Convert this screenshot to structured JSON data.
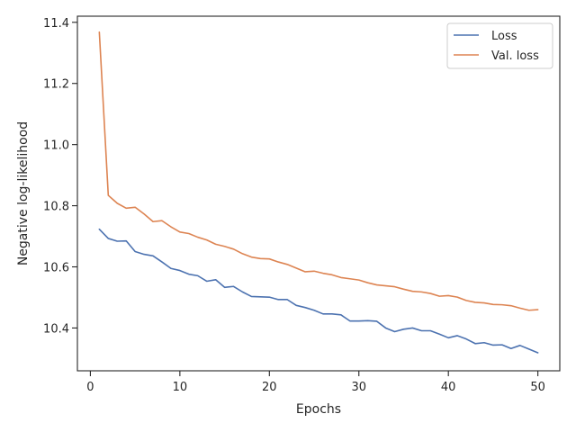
{
  "chart_data": {
    "type": "line",
    "xlabel": "Epochs",
    "ylabel": "Negative log-likelihood",
    "xlim": [
      -1.45,
      52.45
    ],
    "ylim": [
      10.26,
      11.42
    ],
    "xticks": [
      0,
      10,
      20,
      30,
      40,
      50
    ],
    "xtick_labels": [
      "0",
      "10",
      "20",
      "30",
      "40",
      "50"
    ],
    "yticks": [
      10.4,
      10.6,
      10.8,
      11.0,
      11.2,
      11.4
    ],
    "ytick_labels": [
      "10.4",
      "10.6",
      "10.8",
      "11.0",
      "11.2",
      "11.4"
    ],
    "grid": false,
    "legend_position": "top-right",
    "x": [
      1,
      2,
      3,
      4,
      5,
      6,
      7,
      8,
      9,
      10,
      11,
      12,
      13,
      14,
      15,
      16,
      17,
      18,
      19,
      20,
      21,
      22,
      23,
      24,
      25,
      26,
      27,
      28,
      29,
      30,
      31,
      32,
      33,
      34,
      35,
      36,
      37,
      38,
      39,
      40,
      41,
      42,
      43,
      44,
      45,
      46,
      47,
      48,
      49,
      50
    ],
    "series": [
      {
        "name": "Loss",
        "color": "#4c72b0",
        "values": [
          10.723,
          10.693,
          10.684,
          10.685,
          10.65,
          10.641,
          10.636,
          10.616,
          10.595,
          10.588,
          10.576,
          10.571,
          10.553,
          10.558,
          10.533,
          10.536,
          10.518,
          10.503,
          10.502,
          10.501,
          10.493,
          10.493,
          10.474,
          10.467,
          10.458,
          10.446,
          10.446,
          10.443,
          10.423,
          10.423,
          10.424,
          10.422,
          10.4,
          10.388,
          10.396,
          10.4,
          10.391,
          10.391,
          10.38,
          10.368,
          10.375,
          10.364,
          10.349,
          10.352,
          10.344,
          10.345,
          10.333,
          10.343,
          10.331,
          10.319
        ]
      },
      {
        "name": "Val. loss",
        "color": "#dd8452",
        "values": [
          11.368,
          10.834,
          10.808,
          10.792,
          10.795,
          10.773,
          10.748,
          10.751,
          10.731,
          10.714,
          10.709,
          10.697,
          10.688,
          10.674,
          10.667,
          10.658,
          10.643,
          10.632,
          10.627,
          10.626,
          10.616,
          10.608,
          10.596,
          10.584,
          10.586,
          10.579,
          10.574,
          10.565,
          10.561,
          10.557,
          10.548,
          10.541,
          10.538,
          10.535,
          10.527,
          10.52,
          10.518,
          10.513,
          10.504,
          10.506,
          10.501,
          10.49,
          10.484,
          10.482,
          10.477,
          10.476,
          10.473,
          10.465,
          10.458,
          10.46
        ]
      }
    ]
  }
}
